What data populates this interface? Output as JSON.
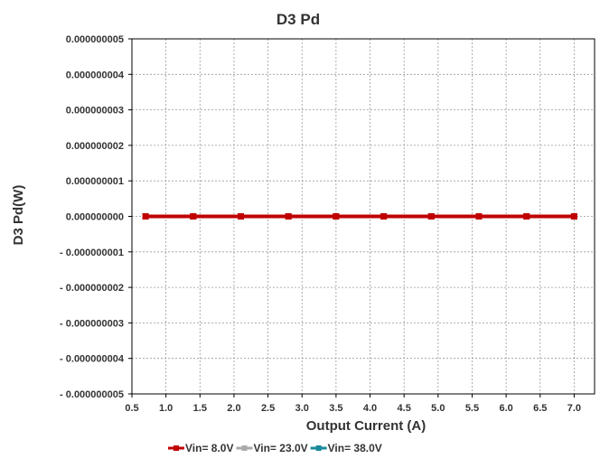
{
  "chart_data": {
    "type": "line",
    "title": "D3 Pd",
    "xlabel": "Output Current (A)",
    "ylabel": "D3 Pd(W)",
    "xlim": [
      0.5,
      7.3
    ],
    "ylim": [
      -5e-09,
      5e-09
    ],
    "x_ticks": [
      "0.5",
      "1.0",
      "1.5",
      "2.0",
      "2.5",
      "3.0",
      "3.5",
      "4.0",
      "4.5",
      "5.0",
      "5.5",
      "6.0",
      "6.5",
      "7.0"
    ],
    "y_ticks": [
      "0.000000005",
      "0.000000004",
      "0.000000003",
      "0.000000002",
      "0.000000001",
      "0.000000000",
      "- 0.000000001",
      "- 0.000000002",
      "- 0.000000003",
      "- 0.000000004",
      "- 0.000000005"
    ],
    "grid": true,
    "legend_position": "bottom",
    "series": [
      {
        "name": "Vin= 8.0V",
        "color": "#c00000",
        "x": [
          0.7,
          1.4,
          2.1,
          2.8,
          3.5,
          4.2,
          4.9,
          5.6,
          6.3,
          7.0
        ],
        "y": [
          0,
          0,
          0,
          0,
          0,
          0,
          0,
          0,
          0,
          0
        ]
      },
      {
        "name": "Vin= 23.0V",
        "color": "#aaaaaa",
        "x": [
          0.7,
          1.4,
          2.1,
          2.8,
          3.5,
          4.2,
          4.9,
          5.6,
          6.3,
          7.0
        ],
        "y": [
          0,
          0,
          0,
          0,
          0,
          0,
          0,
          0,
          0,
          0
        ]
      },
      {
        "name": "Vin= 38.0V",
        "color": "#1a8a9a",
        "x": [
          0.7,
          1.4,
          2.1,
          2.8,
          3.5,
          4.2,
          4.9,
          5.6,
          6.3,
          7.0
        ],
        "y": [
          0,
          0,
          0,
          0,
          0,
          0,
          0,
          0,
          0,
          0
        ]
      }
    ]
  }
}
